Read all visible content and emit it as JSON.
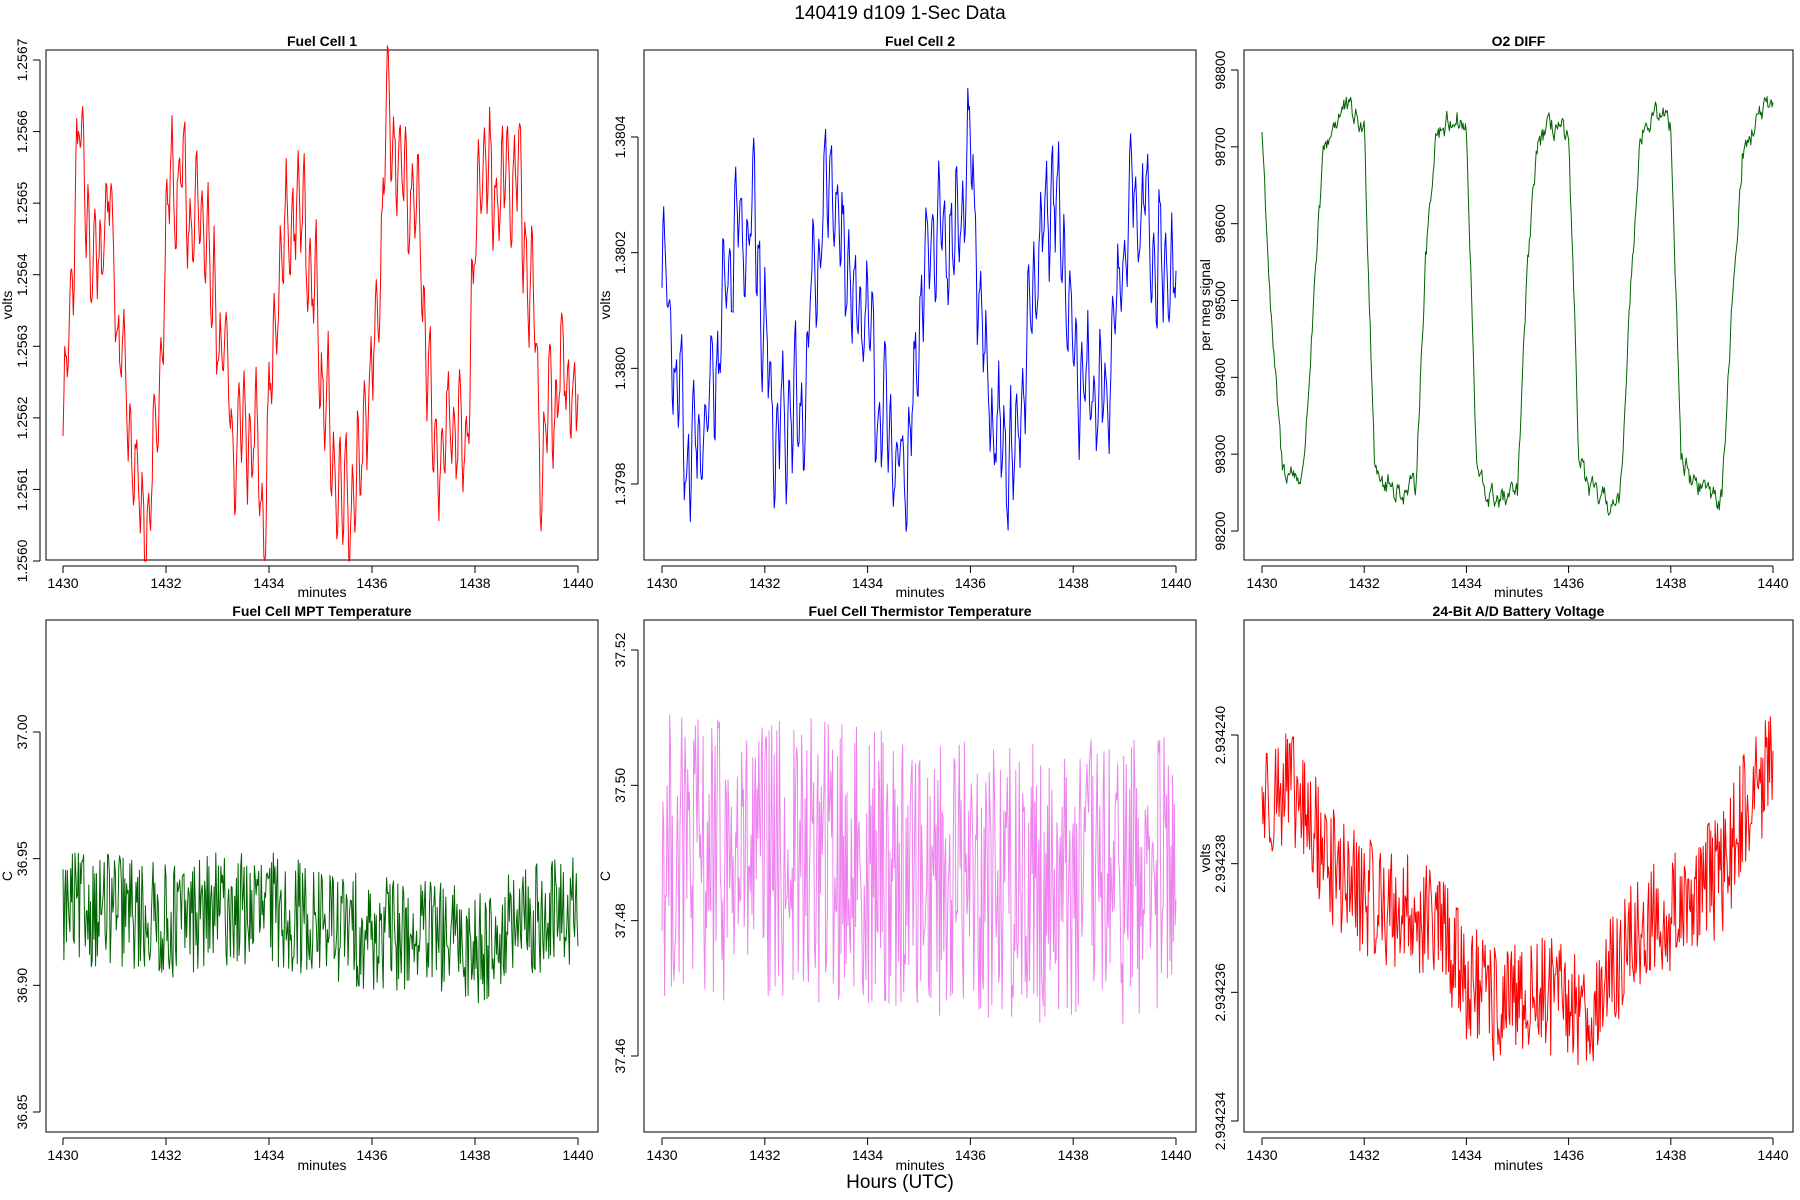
{
  "header": {
    "title": "140419   d109   1-Sec Data"
  },
  "footer": {
    "xlabel": "Hours (UTC)"
  },
  "chart_data": [
    {
      "id": "fc1",
      "type": "line",
      "title": "Fuel Cell 1",
      "xlabel": "minutes",
      "ylabel": "volts",
      "color": "#ff0000",
      "xlim": [
        1430,
        1440
      ],
      "ylim": [
        1.256,
        1.25672
      ],
      "xticks": [
        "1430",
        "1432",
        "1434",
        "1436",
        "1438",
        "1440"
      ],
      "yticks": [
        {
          "value": 1.256,
          "label": "1.2560"
        },
        {
          "value": 1.2561,
          "label": "1.2561"
        },
        {
          "value": 1.2562,
          "label": "1.2562"
        },
        {
          "value": 1.2563,
          "label": "1.2563"
        },
        {
          "value": 1.2564,
          "label": "1.2564"
        },
        {
          "value": 1.2565,
          "label": "1.2565"
        },
        {
          "value": 1.2566,
          "label": "1.2566"
        },
        {
          "value": 1.2567,
          "label": "1.2567"
        }
      ],
      "series": [
        {
          "name": "Fuel Cell 1",
          "x": [
            1430,
            1430.3,
            1430.6,
            1430.9,
            1431.2,
            1431.5,
            1431.8,
            1432.1,
            1432.4,
            1432.7,
            1433.0,
            1433.3,
            1433.6,
            1433.9,
            1434.2,
            1434.5,
            1434.8,
            1435.1,
            1435.4,
            1435.7,
            1436.0,
            1436.3,
            1436.6,
            1436.9,
            1437.2,
            1437.5,
            1437.8,
            1438.1,
            1438.4,
            1438.7,
            1439.0,
            1439.3,
            1439.6,
            1440
          ],
          "y": [
            1.25616,
            1.2566,
            1.2564,
            1.2565,
            1.25625,
            1.25605,
            1.25615,
            1.25655,
            1.2565,
            1.25645,
            1.25635,
            1.25615,
            1.2562,
            1.2561,
            1.2564,
            1.2565,
            1.25645,
            1.2562,
            1.2561,
            1.25612,
            1.25625,
            1.2566,
            1.25655,
            1.25645,
            1.25615,
            1.2562,
            1.25618,
            1.25655,
            1.2565,
            1.25655,
            1.25645,
            1.25615,
            1.25625,
            1.25623
          ]
        }
      ]
    },
    {
      "id": "fc2",
      "type": "line",
      "title": "Fuel Cell 2",
      "xlabel": "minutes",
      "ylabel": "volts",
      "color": "#0000ff",
      "xlim": [
        1430,
        1440
      ],
      "ylim": [
        1.37969,
        1.38058
      ],
      "xticks": [
        "1430",
        "1432",
        "1434",
        "1436",
        "1438",
        "1440"
      ],
      "yticks": [
        {
          "value": 1.3798,
          "label": "1.3798"
        },
        {
          "value": 1.38,
          "label": "1.3800"
        },
        {
          "value": 1.3802,
          "label": "1.3802"
        },
        {
          "value": 1.3804,
          "label": "1.3804"
        }
      ],
      "series": [
        {
          "name": "Fuel Cell 2",
          "x": [
            1430,
            1430.3,
            1430.6,
            1430.9,
            1431.2,
            1431.5,
            1431.8,
            1432.1,
            1432.4,
            1432.7,
            1433.0,
            1433.3,
            1433.6,
            1433.9,
            1434.2,
            1434.5,
            1434.8,
            1435.1,
            1435.4,
            1435.7,
            1436.0,
            1436.3,
            1436.6,
            1436.9,
            1437.2,
            1437.5,
            1437.8,
            1438.1,
            1438.4,
            1438.7,
            1439.0,
            1439.3,
            1439.6,
            1440
          ],
          "y": [
            1.38018,
            1.37995,
            1.37985,
            1.3799,
            1.38012,
            1.38028,
            1.38025,
            1.37995,
            1.37992,
            1.37988,
            1.3802,
            1.38032,
            1.38018,
            1.38008,
            1.37995,
            1.37985,
            1.37982,
            1.38015,
            1.38028,
            1.38022,
            1.38035,
            1.37995,
            1.37988,
            1.37985,
            1.3801,
            1.3803,
            1.38025,
            1.37998,
            1.37992,
            1.37995,
            1.38025,
            1.38028,
            1.38022,
            1.38012
          ]
        }
      ]
    },
    {
      "id": "o2",
      "type": "line",
      "title": "O2 DIFF",
      "xlabel": "minutes",
      "ylabel": "per meg signal",
      "color": "#006400",
      "xlim": [
        1430,
        1440
      ],
      "ylim": [
        98170,
        98810
      ],
      "xticks": [
        "1430",
        "1432",
        "1434",
        "1436",
        "1438",
        "1440"
      ],
      "yticks": [
        {
          "value": 98200,
          "label": "98200"
        },
        {
          "value": 98300,
          "label": "98300"
        },
        {
          "value": 98400,
          "label": "98400"
        },
        {
          "value": 98500,
          "label": "98500"
        },
        {
          "value": 98600,
          "label": "98600"
        },
        {
          "value": 98700,
          "label": "98700"
        },
        {
          "value": 98800,
          "label": "98800"
        }
      ],
      "series": [
        {
          "name": "O2 DIFF",
          "x": [
            1430,
            1430.2,
            1430.4,
            1430.8,
            1431.2,
            1431.4,
            1431.6,
            1431.8,
            1432.0,
            1432.2,
            1432.4,
            1432.8,
            1433.0,
            1433.2,
            1433.4,
            1433.8,
            1434.0,
            1434.2,
            1434.4,
            1434.8,
            1435.0,
            1435.2,
            1435.4,
            1435.8,
            1436.0,
            1436.2,
            1436.4,
            1436.8,
            1437.0,
            1437.2,
            1437.4,
            1437.8,
            1438.0,
            1438.2,
            1438.4,
            1438.8,
            1439.0,
            1439.2,
            1439.4,
            1439.8,
            1440
          ],
          "y": [
            98720,
            98450,
            98280,
            98270,
            98690,
            98730,
            98750,
            98740,
            98720,
            98300,
            98260,
            98250,
            98255,
            98550,
            98720,
            98740,
            98720,
            98280,
            98245,
            98240,
            98250,
            98550,
            98710,
            98730,
            98700,
            98300,
            98250,
            98235,
            98230,
            98500,
            98720,
            98745,
            98730,
            98300,
            98265,
            98250,
            98240,
            98500,
            98690,
            98750,
            98740
          ]
        }
      ]
    },
    {
      "id": "mpt",
      "type": "line",
      "title": "Fuel Cell MPT Temperature",
      "xlabel": "minutes",
      "ylabel": "C",
      "color": "#006400",
      "xlim": [
        1430,
        1440
      ],
      "ylim": [
        36.846,
        37.035
      ],
      "xticks": [
        "1430",
        "1432",
        "1434",
        "1436",
        "1438",
        "1440"
      ],
      "yticks": [
        {
          "value": 36.85,
          "label": "36.85"
        },
        {
          "value": 36.9,
          "label": "36.90"
        },
        {
          "value": 36.95,
          "label": "36.95"
        },
        {
          "value": 37.0,
          "label": "37.00"
        }
      ],
      "series": [
        {
          "name": "MPT Temperature",
          "x": [
            1430,
            1431,
            1432,
            1433,
            1433.5,
            1434,
            1435,
            1436,
            1437,
            1438,
            1439,
            1440
          ],
          "y": [
            36.93,
            36.93,
            36.925,
            36.93,
            36.93,
            36.93,
            36.925,
            36.92,
            36.92,
            36.915,
            36.925,
            36.93
          ]
        }
      ]
    },
    {
      "id": "therm",
      "type": "line",
      "title": "Fuel Cell Thermistor Temperature",
      "xlabel": "minutes",
      "ylabel": "C",
      "color": "#ee82ee",
      "xlim": [
        1430,
        1440
      ],
      "ylim": [
        37.449,
        37.525
      ],
      "xticks": [
        "1430",
        "1432",
        "1434",
        "1436",
        "1438",
        "1440"
      ],
      "yticks": [
        {
          "value": 37.46,
          "label": "37.46"
        },
        {
          "value": 37.48,
          "label": "37.48"
        },
        {
          "value": 37.5,
          "label": "37.50"
        },
        {
          "value": 37.52,
          "label": "37.52"
        }
      ],
      "series": [
        {
          "name": "Thermistor Temperature",
          "x": [
            1430,
            1431,
            1432,
            1433,
            1434,
            1435,
            1436,
            1437,
            1438,
            1439,
            1440
          ],
          "y": [
            37.49,
            37.489,
            37.488,
            37.489,
            37.488,
            37.487,
            37.487,
            37.486,
            37.486,
            37.486,
            37.487
          ]
        }
      ]
    },
    {
      "id": "batt",
      "type": "line",
      "title": "24-Bit A/D Battery Voltage",
      "xlabel": "minutes",
      "ylabel": "volts",
      "color": "#ff0000",
      "xlim": [
        1430,
        1440
      ],
      "ylim": [
        2.9342337,
        2.9342415
      ],
      "xticks": [
        "1430",
        "1432",
        "1434",
        "1436",
        "1438",
        "1440"
      ],
      "yticks": [
        {
          "value": 2.934234,
          "label": "2.934234"
        },
        {
          "value": 2.934236,
          "label": "2.934236"
        },
        {
          "value": 2.934238,
          "label": "2.934238"
        },
        {
          "value": 2.93424,
          "label": "2.934240"
        }
      ],
      "series": [
        {
          "name": "Battery Voltage",
          "x": [
            1430,
            1430.5,
            1431,
            1431.5,
            1432,
            1432.5,
            1433,
            1433.5,
            1434,
            1434.5,
            1435,
            1435.5,
            1436,
            1436.5,
            1437,
            1437.5,
            1438,
            1438.5,
            1439,
            1439.5,
            1440
          ],
          "y": [
            2.934239,
            2.9342392,
            2.9342385,
            2.9342378,
            2.9342375,
            2.9342373,
            2.9342372,
            2.934237,
            2.9342362,
            2.9342358,
            2.9342358,
            2.934236,
            2.9342358,
            2.9342357,
            2.9342365,
            2.934237,
            2.9342372,
            2.9342376,
            2.9342378,
            2.934239,
            2.9342395
          ]
        }
      ]
    }
  ]
}
